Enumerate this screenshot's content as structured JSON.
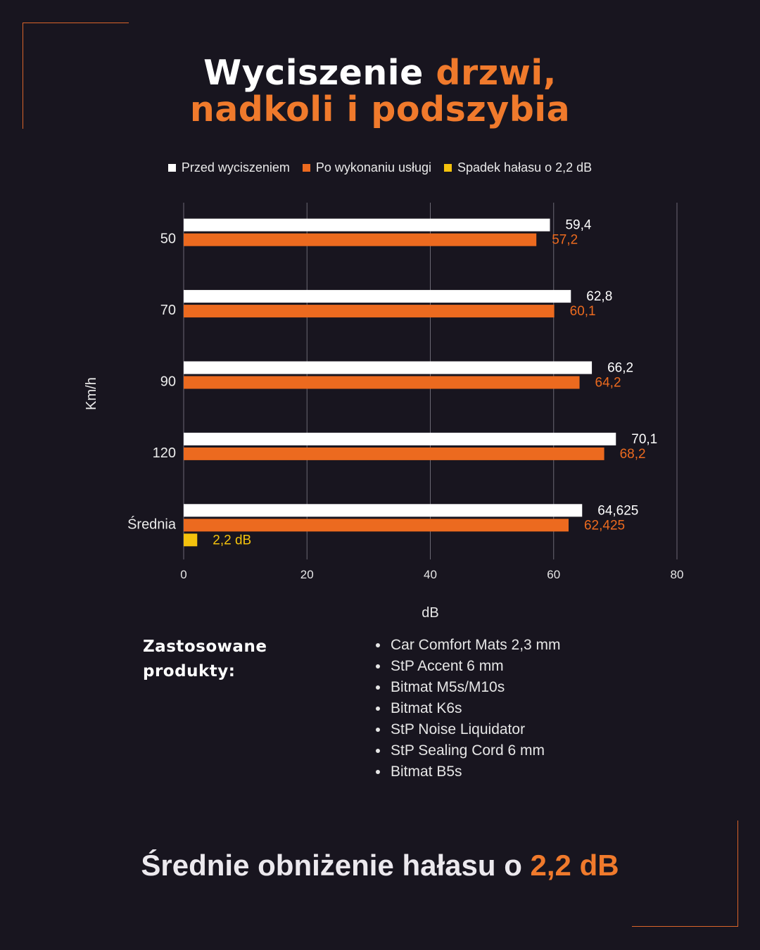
{
  "title": {
    "line1_white": "Wyciszenie ",
    "line1_orange": "drzwi,",
    "line2_orange": "nadkoli i podszybia"
  },
  "legend": [
    {
      "label": "Przed wyciszeniem",
      "color": "#ffffff"
    },
    {
      "label": "Po wykonaniu usługi",
      "color": "#ec6a1f"
    },
    {
      "label": "Spadek hałasu o 2,2 dB",
      "color": "#f4c20d"
    }
  ],
  "chart_data": {
    "type": "bar",
    "orientation": "horizontal",
    "categories": [
      "50",
      "70",
      "90",
      "120",
      "Średnia"
    ],
    "series": [
      {
        "name": "Przed wyciszeniem",
        "color": "#ffffff",
        "values": [
          59.4,
          62.8,
          66.2,
          70.1,
          64.625
        ],
        "labels": [
          "59,4",
          "62,8",
          "66,2",
          "70,1",
          "64,625"
        ]
      },
      {
        "name": "Po wykonaniu usługi",
        "color": "#ec6a1f",
        "values": [
          57.2,
          60.1,
          64.2,
          68.2,
          62.425
        ],
        "labels": [
          "57,2",
          "60,1",
          "64,2",
          "68,2",
          "62,425"
        ]
      },
      {
        "name": "Spadek hałasu o 2,2 dB",
        "color": "#f4c20d",
        "values": [
          null,
          null,
          null,
          null,
          2.2
        ],
        "labels": [
          null,
          null,
          null,
          null,
          "2,2 dB"
        ]
      }
    ],
    "xlabel": "dB",
    "ylabel": "Km/h",
    "xlim": [
      0,
      80
    ],
    "xticks": [
      0,
      20,
      40,
      60,
      80
    ],
    "grid": true
  },
  "products": {
    "title_line1": "Zastosowane",
    "title_line2": "produkty:",
    "items": [
      "Car Comfort Mats 2,3 mm",
      "StP Accent 6 mm",
      "Bitmat M5s/M10s",
      "Bitmat K6s",
      "StP Noise Liquidator",
      "StP Sealing Cord 6 mm",
      "Bitmat B5s"
    ]
  },
  "summary": {
    "text": "Średnie obniżenie hałasu o ",
    "highlight": "2,2 dB"
  }
}
